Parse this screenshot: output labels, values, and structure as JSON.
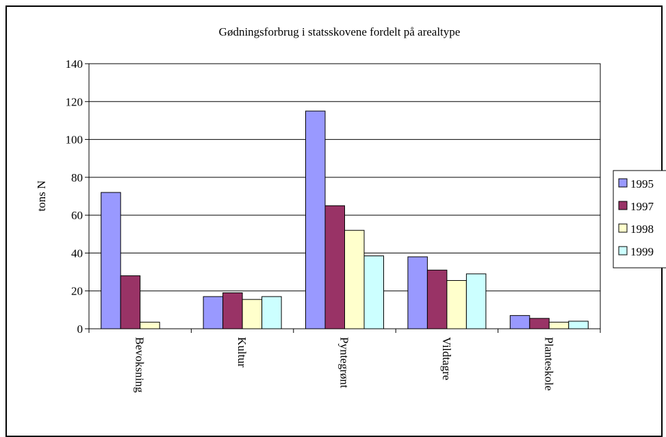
{
  "chart_data": {
    "type": "bar",
    "title": "Gødningsforbrug i statsskovene fordelt på arealtype",
    "xlabel": "",
    "ylabel": "tons N",
    "ylim": [
      0,
      140
    ],
    "yticks": [
      0,
      20,
      40,
      60,
      80,
      100,
      120,
      140
    ],
    "grid": true,
    "legend_position": "right",
    "categories": [
      "Bevoksning",
      "Kultur",
      "Pyntegrønt",
      "Vildtagre",
      "Planteskole"
    ],
    "series": [
      {
        "name": "1995",
        "color": "#9999ff",
        "values": [
          72,
          17,
          115,
          38,
          7
        ]
      },
      {
        "name": "1997",
        "color": "#993366",
        "values": [
          28,
          19,
          65,
          31,
          5.5
        ]
      },
      {
        "name": "1998",
        "color": "#ffffcc",
        "values": [
          3.5,
          15.5,
          52,
          25.5,
          3.5
        ]
      },
      {
        "name": "1999",
        "color": "#ccffff",
        "values": [
          0,
          17,
          38.5,
          29,
          4
        ]
      }
    ]
  }
}
